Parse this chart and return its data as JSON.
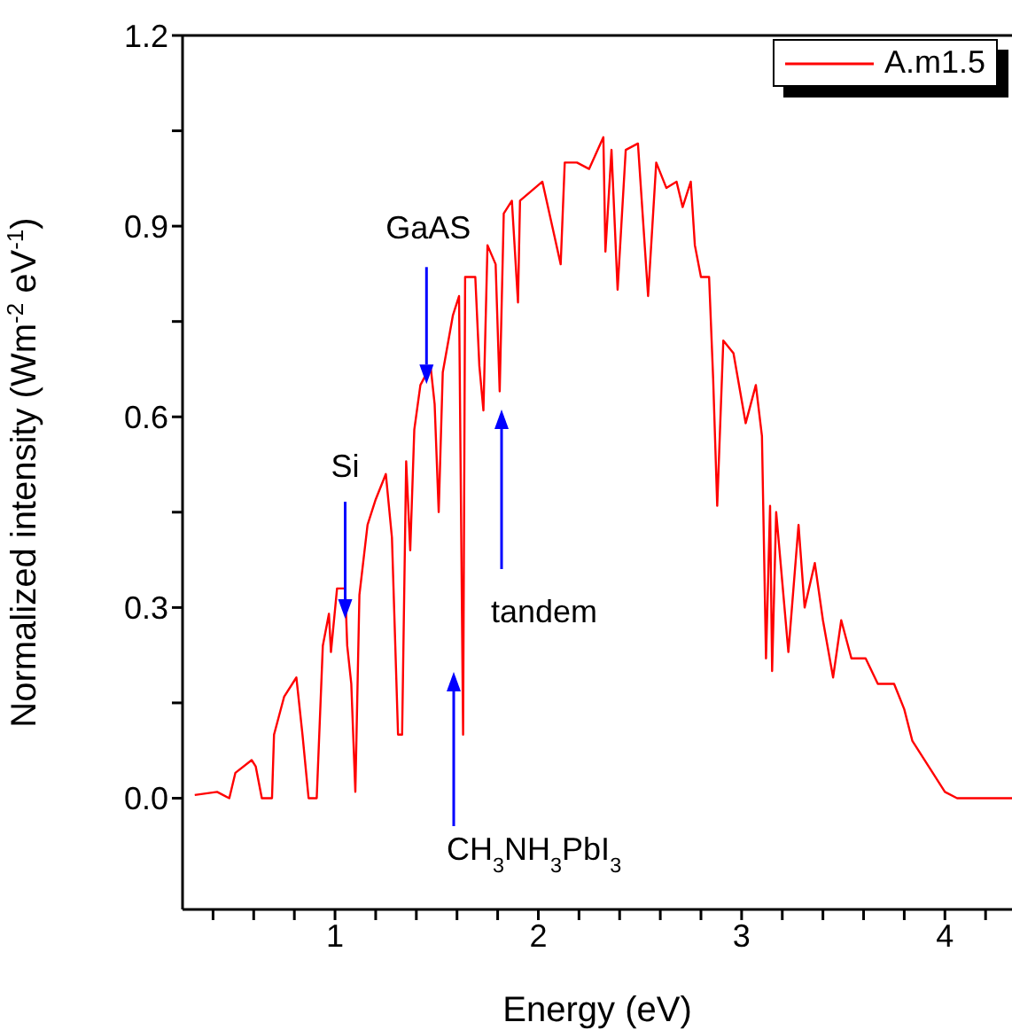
{
  "chart_data": {
    "type": "line",
    "xlabel": "Energy (eV)",
    "ylabel": "Normalized intensity (Wm$^{-2}$ eV$^{-1}$)",
    "x": [
      0.31,
      0.42,
      0.48,
      0.51,
      0.59,
      0.61,
      0.64,
      0.69,
      0.7,
      0.75,
      0.81,
      0.84,
      0.87,
      0.91,
      0.94,
      0.97,
      0.98,
      1.01,
      1.05,
      1.06,
      1.08,
      1.1,
      1.12,
      1.16,
      1.2,
      1.25,
      1.28,
      1.31,
      1.33,
      1.35,
      1.37,
      1.39,
      1.42,
      1.47,
      1.49,
      1.51,
      1.53,
      1.58,
      1.61,
      1.63,
      1.64,
      1.69,
      1.71,
      1.73,
      1.75,
      1.79,
      1.81,
      1.83,
      1.87,
      1.9,
      1.91,
      2.02,
      2.11,
      2.13,
      2.19,
      2.25,
      2.32,
      2.33,
      2.36,
      2.39,
      2.43,
      2.49,
      2.54,
      2.58,
      2.63,
      2.68,
      2.71,
      2.75,
      2.77,
      2.8,
      2.84,
      2.86,
      2.88,
      2.91,
      2.96,
      3.02,
      3.07,
      3.1,
      3.12,
      3.14,
      3.15,
      3.17,
      3.2,
      3.23,
      3.28,
      3.31,
      3.36,
      3.4,
      3.45,
      3.49,
      3.54,
      3.61,
      3.67,
      3.75,
      3.8,
      3.84,
      3.92,
      4.0,
      4.06,
      4.33
    ],
    "series": [
      {
        "name": "A.m1.5",
        "color": "#ff0000",
        "values": [
          0.005,
          0.01,
          0,
          0.04,
          0.06,
          0.05,
          0,
          0,
          0.1,
          0.16,
          0.19,
          0.1,
          0,
          0,
          0.24,
          0.29,
          0.23,
          0.33,
          0.33,
          0.24,
          0.18,
          0.01,
          0.32,
          0.43,
          0.47,
          0.51,
          0.41,
          0.1,
          0.1,
          0.53,
          0.39,
          0.58,
          0.65,
          0.68,
          0.62,
          0.45,
          0.67,
          0.76,
          0.79,
          0.1,
          0.82,
          0.82,
          0.68,
          0.61,
          0.87,
          0.84,
          0.64,
          0.92,
          0.94,
          0.78,
          0.94,
          0.97,
          0.84,
          1.0,
          1.0,
          0.99,
          1.04,
          0.86,
          1.02,
          0.8,
          1.02,
          1.03,
          0.79,
          1.0,
          0.96,
          0.97,
          0.93,
          0.97,
          0.87,
          0.82,
          0.82,
          0.66,
          0.46,
          0.72,
          0.7,
          0.59,
          0.65,
          0.57,
          0.22,
          0.46,
          0.2,
          0.45,
          0.34,
          0.23,
          0.43,
          0.3,
          0.37,
          0.28,
          0.19,
          0.28,
          0.22,
          0.22,
          0.18,
          0.18,
          0.14,
          0.09,
          0.05,
          0.01,
          0,
          0
        ]
      }
    ],
    "xlim": [
      0.25,
      4.33
    ],
    "ylim": [
      -0.175,
      1.2
    ],
    "xticks": [
      {
        "value": 0.4,
        "label": null
      },
      {
        "value": 0.6,
        "label": null
      },
      {
        "value": 0.8,
        "label": null
      },
      1,
      {
        "value": 1.2,
        "label": null
      },
      {
        "value": 1.4,
        "label": null
      },
      {
        "value": 1.6,
        "label": null
      },
      {
        "value": 1.8,
        "label": null
      },
      2,
      {
        "value": 2.2,
        "label": null
      },
      {
        "value": 2.4,
        "label": null
      },
      {
        "value": 2.6,
        "label": null
      },
      {
        "value": 2.8,
        "label": null
      },
      3,
      {
        "value": 3.2,
        "label": null
      },
      {
        "value": 3.4,
        "label": null
      },
      {
        "value": 3.6,
        "label": null
      },
      {
        "value": 3.8,
        "label": null
      },
      4,
      {
        "value": 4.2,
        "label": null
      }
    ],
    "yticks": [
      {
        "value": 0.0,
        "label": "0.0"
      },
      {
        "value": 0.15,
        "label": null
      },
      {
        "value": 0.3,
        "label": "0.3"
      },
      {
        "value": 0.45,
        "label": null
      },
      {
        "value": 0.6,
        "label": "0.6"
      },
      {
        "value": 0.75,
        "label": null
      },
      {
        "value": 0.9,
        "label": "0.9"
      },
      {
        "value": 1.05,
        "label": null
      },
      {
        "value": 1.2,
        "label": "1.2"
      }
    ],
    "annotations": [
      {
        "text": "Si",
        "x": 1.05,
        "y": 0.33
      },
      {
        "text": "GaAS",
        "x": 1.45,
        "y": 0.68
      },
      "tandem",
      "CH$_{3}$NH$_{3}$PbI$_{3}$"
    ],
    "legend": "top right",
    "grid": false,
    "marker": "none",
    "line_style": "solid"
  }
}
